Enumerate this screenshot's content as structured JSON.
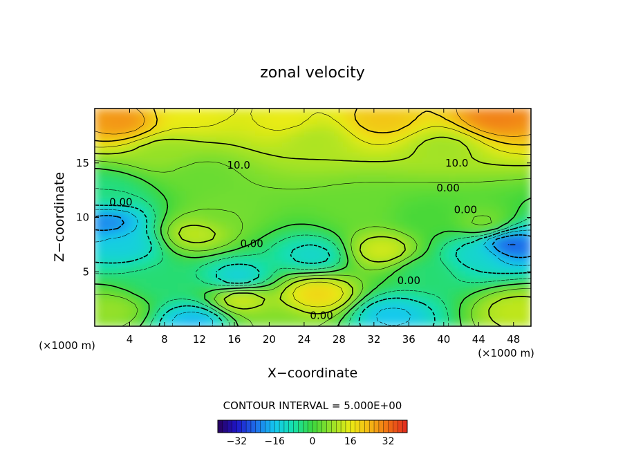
{
  "chart_data": {
    "type": "heatmap",
    "title": "zonal velocity",
    "xlabel": "X−coordinate",
    "ylabel": "Z−coordinate",
    "x_unit_left": "(×1000 m)",
    "x_unit_right": "(×1000 m)",
    "xlim": [
      0,
      50
    ],
    "ylim": [
      0,
      20
    ],
    "x_ticks": [
      4,
      8,
      12,
      16,
      20,
      24,
      28,
      32,
      36,
      40,
      44,
      48
    ],
    "y_ticks": [
      5,
      10,
      15
    ],
    "x_tick_labels": [
      "4",
      "8",
      "12",
      "16",
      "20",
      "24",
      "28",
      "32",
      "36",
      "40",
      "44",
      "48"
    ],
    "y_tick_labels": [
      "5",
      "10",
      "15"
    ],
    "contour_interval_text": "CONTOUR INTERVAL = 5.000E+00",
    "contour_labels": [
      {
        "text": "10.0",
        "x": 16.5,
        "y": 14.8
      },
      {
        "text": "10.0",
        "x": 41.5,
        "y": 15.0
      },
      {
        "text": "0.00",
        "x": 3.0,
        "y": 11.4
      },
      {
        "text": "0.00",
        "x": 40.5,
        "y": 12.7
      },
      {
        "text": "0.00",
        "x": 42.5,
        "y": 10.7
      },
      {
        "text": "0.00",
        "x": 18.0,
        "y": 7.6
      },
      {
        "text": "0.00",
        "x": 36.0,
        "y": 4.2
      },
      {
        "text": "0.00",
        "x": 26.0,
        "y": 1.0
      }
    ],
    "features": [
      {
        "x": 3.0,
        "y": 18.8,
        "value": 28
      },
      {
        "x": 11.0,
        "y": 19.5,
        "value": 16
      },
      {
        "x": 22.0,
        "y": 18.8,
        "value": 16
      },
      {
        "x": 33.0,
        "y": 19.0,
        "value": 22
      },
      {
        "x": 46.0,
        "y": 19.2,
        "value": 30
      },
      {
        "x": 25.0,
        "y": 17.2,
        "value": 10
      },
      {
        "x": 8.0,
        "y": 16.0,
        "value": 8
      },
      {
        "x": 40.0,
        "y": 16.5,
        "value": 9
      },
      {
        "x": 1.5,
        "y": 9.5,
        "value": -22
      },
      {
        "x": 3.5,
        "y": 7.5,
        "value": -14
      },
      {
        "x": 1.5,
        "y": 12.3,
        "value": -5
      },
      {
        "x": 11.5,
        "y": 8.5,
        "value": 12
      },
      {
        "x": 14.5,
        "y": 10.5,
        "value": 5
      },
      {
        "x": 16.5,
        "y": 4.5,
        "value": -14
      },
      {
        "x": 16.8,
        "y": 2.5,
        "value": 14
      },
      {
        "x": 25.0,
        "y": 6.5,
        "value": -12
      },
      {
        "x": 25.5,
        "y": 3.0,
        "value": 20
      },
      {
        "x": 33.0,
        "y": 7.0,
        "value": 14
      },
      {
        "x": 11.5,
        "y": 0.5,
        "value": -18
      },
      {
        "x": 20.5,
        "y": 0.4,
        "value": 6
      },
      {
        "x": 34.0,
        "y": 1.0,
        "value": -16
      },
      {
        "x": 38.0,
        "y": 5.0,
        "value": -4
      },
      {
        "x": 47.5,
        "y": 7.5,
        "value": -26
      },
      {
        "x": 44.5,
        "y": 9.5,
        "value": 6
      },
      {
        "x": 44.0,
        "y": 6.5,
        "value": -12
      },
      {
        "x": 48.5,
        "y": 1.5,
        "value": 12
      },
      {
        "x": 2.0,
        "y": 1.5,
        "value": 8
      },
      {
        "x": 7.5,
        "y": 4.0,
        "value": -4
      },
      {
        "x": 12.0,
        "y": 14.0,
        "value": 4
      },
      {
        "x": 38.0,
        "y": 10.0,
        "value": 1
      },
      {
        "x": 30.5,
        "y": 11.0,
        "value": 4
      }
    ],
    "colorbar": {
      "range": [
        -40,
        40
      ],
      "tick_values": [
        -32,
        -16,
        0,
        16,
        32
      ],
      "tick_labels": [
        "−32",
        "−16",
        "0",
        "16",
        "32"
      ]
    }
  }
}
